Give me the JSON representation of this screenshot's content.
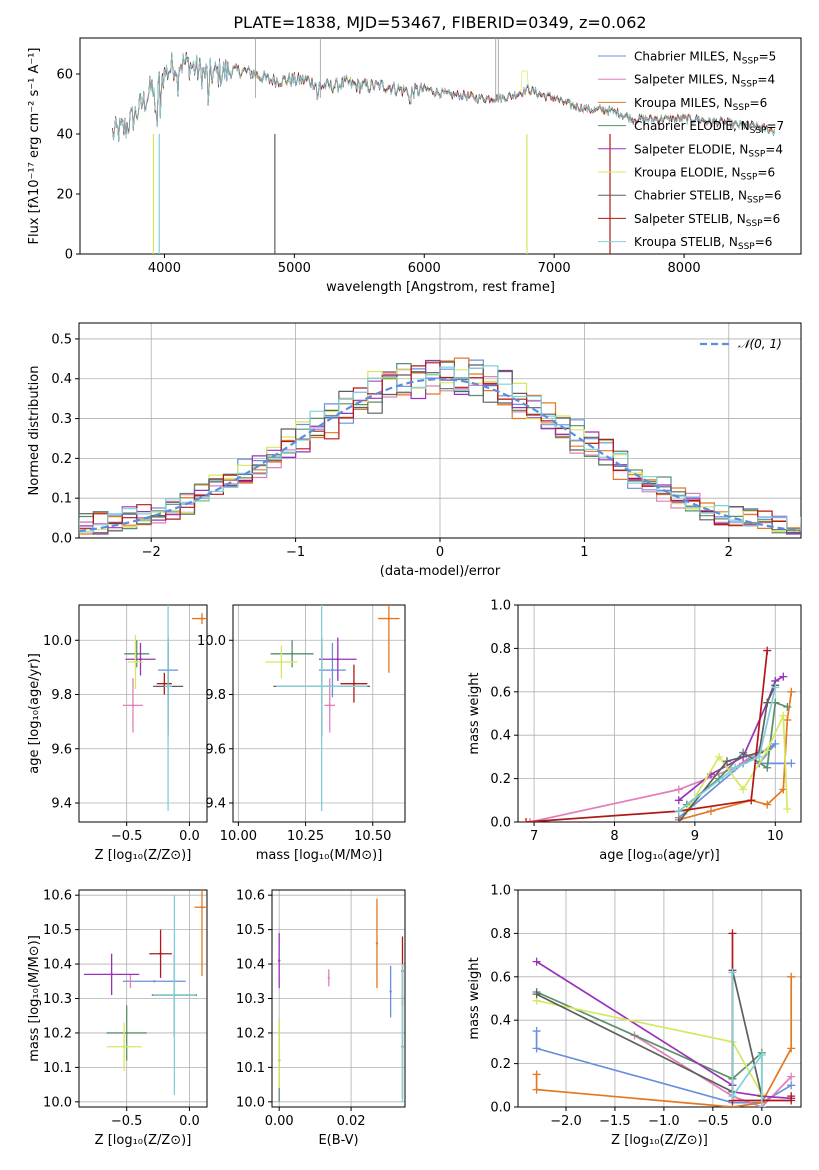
{
  "figure": {
    "title": "PLATE=1838, MJD=53467, FIBERID=0349, z=0.062"
  },
  "models": [
    {
      "name": "Chabrier MILES",
      "n": "5",
      "color": "#6a8fdc"
    },
    {
      "name": "Salpeter MILES",
      "n": "4",
      "color": "#e07fba"
    },
    {
      "name": "Kroupa MILES",
      "n": "6",
      "color": "#e37822"
    },
    {
      "name": "Chabrier ELODIE",
      "n": "7",
      "color": "#5a8f6a"
    },
    {
      "name": "Salpeter ELODIE",
      "n": "4",
      "color": "#9a32b8"
    },
    {
      "name": "Kroupa ELODIE",
      "n": "6",
      "color": "#d6e860"
    },
    {
      "name": "Chabrier STELIB",
      "n": "6",
      "color": "#5e5e5e"
    },
    {
      "name": "Salpeter STELIB",
      "n": "6",
      "color": "#b31818"
    },
    {
      "name": "Kroupa STELIB",
      "n": "6",
      "color": "#7fd0d8"
    }
  ],
  "chart_data": [
    {
      "id": "spectrum",
      "type": "line",
      "xlabel": "wavelength [Angstrom, rest frame]",
      "ylabel": "Flux [fλ10⁻¹⁷ erg cm⁻² s⁻¹ A⁻¹]",
      "xlim": [
        3350,
        8900
      ],
      "ylim": [
        0,
        72
      ],
      "xticks": [
        4000,
        5000,
        6000,
        7000,
        8000
      ],
      "yticks": [
        0,
        20,
        40,
        60
      ],
      "continuum": [
        [
          3600,
          40
        ],
        [
          3700,
          42
        ],
        [
          3800,
          48
        ],
        [
          3900,
          55
        ],
        [
          3960,
          57
        ],
        [
          4000,
          60
        ],
        [
          4100,
          64
        ],
        [
          4200,
          63
        ],
        [
          4300,
          60
        ],
        [
          4400,
          60
        ],
        [
          4500,
          61
        ],
        [
          4600,
          61
        ],
        [
          4700,
          60
        ],
        [
          4800,
          58
        ],
        [
          4900,
          58
        ],
        [
          5000,
          58
        ],
        [
          5100,
          58
        ],
        [
          5200,
          56
        ],
        [
          5300,
          56
        ],
        [
          5400,
          57
        ],
        [
          5500,
          56
        ],
        [
          5600,
          56
        ],
        [
          5700,
          56
        ],
        [
          5800,
          55
        ],
        [
          5900,
          54
        ],
        [
          6000,
          55
        ],
        [
          6100,
          54
        ],
        [
          6200,
          53
        ],
        [
          6300,
          53
        ],
        [
          6400,
          52
        ],
        [
          6500,
          52
        ],
        [
          6600,
          52
        ],
        [
          6700,
          53
        ],
        [
          6800,
          55
        ],
        [
          6900,
          53
        ],
        [
          7000,
          52
        ],
        [
          7100,
          50
        ],
        [
          7200,
          49
        ],
        [
          7300,
          48
        ],
        [
          7400,
          48
        ],
        [
          7500,
          47
        ],
        [
          7600,
          45
        ],
        [
          7700,
          45
        ],
        [
          7800,
          45
        ],
        [
          7900,
          45
        ],
        [
          8000,
          45
        ],
        [
          8100,
          45
        ],
        [
          8200,
          44
        ],
        [
          8300,
          44
        ],
        [
          8400,
          43
        ],
        [
          8500,
          43
        ],
        [
          8600,
          42
        ],
        [
          8700,
          41
        ]
      ],
      "legend": "top-right"
    },
    {
      "id": "residuals",
      "type": "histogram",
      "xlabel": "(data-model)/error",
      "ylabel": "Normed distribution",
      "xlim": [
        -2.5,
        2.5
      ],
      "ylim": [
        0,
        0.54
      ],
      "xticks": [
        -2,
        -1,
        0,
        1,
        2
      ],
      "yticks": [
        0.0,
        0.1,
        0.2,
        0.3,
        0.4,
        0.5
      ],
      "bin_width": 0.1,
      "reference": {
        "label": "𝒩(0, 1)",
        "mean": 0,
        "sigma": 1,
        "color": "#5b8ee0"
      },
      "legend": "top-right"
    },
    {
      "id": "age_vs_Z",
      "type": "scatter",
      "xlabel": "Z [log₁₀(Z/Z⊙)]",
      "ylabel": "age  [log₁₀(age/yr)]",
      "xlim": [
        -0.88,
        0.14
      ],
      "ylim": [
        9.33,
        10.13
      ],
      "xticks": [
        -0.5,
        0.0
      ],
      "yticks": [
        9.4,
        9.6,
        9.8,
        10.0
      ],
      "points": [
        {
          "x": -0.17,
          "y": 9.89,
          "xe": 0.08,
          "ye": 0.1
        },
        {
          "x": -0.45,
          "y": 9.76,
          "xe": 0.08,
          "ye": 0.1
        },
        {
          "x": 0.1,
          "y": 10.08,
          "xe": 0.08,
          "ye": 0.02
        },
        {
          "x": -0.42,
          "y": 9.95,
          "xe": 0.1,
          "ye": 0.05
        },
        {
          "x": -0.39,
          "y": 9.93,
          "xe": 0.12,
          "ye": 0.06
        },
        {
          "x": -0.43,
          "y": 9.92,
          "xe": 0.06,
          "ye": 0.1
        },
        {
          "x": -0.17,
          "y": 9.83,
          "xe": 0.12,
          "ye": 0.18
        },
        {
          "x": -0.2,
          "y": 9.84,
          "xe": 0.06,
          "ye": 0.04
        },
        {
          "x": -0.17,
          "y": 9.83,
          "xe": 0.03,
          "ye": 0.46
        }
      ]
    },
    {
      "id": "age_vs_mass",
      "type": "scatter",
      "xlabel": "mass [log₁₀(M/M⊙)]",
      "ylabel": "",
      "xlim": [
        9.98,
        10.62
      ],
      "ylim": [
        9.33,
        10.13
      ],
      "xticks": [
        10.0,
        10.25,
        10.5
      ],
      "yticks": [
        9.4,
        9.6,
        9.8,
        10.0
      ],
      "points": [
        {
          "x": 10.35,
          "y": 9.89,
          "xe": 0.05,
          "ye": 0.1
        },
        {
          "x": 10.34,
          "y": 9.76,
          "xe": 0.02,
          "ye": 0.1
        },
        {
          "x": 10.56,
          "y": 10.08,
          "xe": 0.04,
          "ye": 0.2
        },
        {
          "x": 10.2,
          "y": 9.95,
          "xe": 0.08,
          "ye": 0.05
        },
        {
          "x": 10.37,
          "y": 9.93,
          "xe": 0.07,
          "ye": 0.08
        },
        {
          "x": 10.16,
          "y": 9.92,
          "xe": 0.06,
          "ye": 0.06
        },
        {
          "x": 10.31,
          "y": 9.83,
          "xe": 0.18,
          "ye": 0.18
        },
        {
          "x": 10.43,
          "y": 9.84,
          "xe": 0.05,
          "ye": 0.07
        },
        {
          "x": 10.31,
          "y": 9.83,
          "xe": 0.17,
          "ye": 0.46
        }
      ]
    },
    {
      "id": "weight_vs_age",
      "type": "line",
      "xlabel": "age  [log₁₀(age/yr)]",
      "ylabel": "mass weight",
      "xlim": [
        6.8,
        10.32
      ],
      "ylim": [
        0,
        1.0
      ],
      "xticks": [
        7,
        8,
        9,
        10
      ],
      "yticks": [
        0.0,
        0.2,
        0.4,
        0.6,
        0.8,
        1.0
      ],
      "series": [
        {
          "x": [
            8.8,
            9.6,
            10.0,
            9.8,
            9.8,
            10.2
          ],
          "y": [
            0.02,
            0.27,
            0.36,
            0.27,
            0.27,
            0.27
          ]
        },
        {
          "x": [
            6.95,
            8.8,
            9.5,
            9.8
          ],
          "y": [
            0.0,
            0.15,
            0.25,
            0.33
          ]
        },
        {
          "x": [
            8.8,
            9.2,
            9.7,
            9.9,
            10.1,
            10.15,
            10.2
          ],
          "y": [
            0.01,
            0.05,
            0.1,
            0.08,
            0.15,
            0.47,
            0.6
          ]
        },
        {
          "x": [
            8.9,
            9.3,
            9.6,
            9.9,
            10.0,
            10.15
          ],
          "y": [
            0.08,
            0.2,
            0.32,
            0.25,
            0.55,
            0.53
          ]
        },
        {
          "x": [
            8.8,
            9.2,
            9.6,
            9.9,
            10.0,
            10.1
          ],
          "y": [
            0.1,
            0.22,
            0.3,
            0.55,
            0.65,
            0.67
          ]
        },
        {
          "x": [
            8.9,
            9.3,
            9.6,
            9.9,
            10.1,
            10.15
          ],
          "y": [
            0.05,
            0.3,
            0.15,
            0.33,
            0.49,
            0.06
          ]
        },
        {
          "x": [
            8.8,
            9.4,
            9.8,
            9.9,
            10.0
          ],
          "y": [
            0.0,
            0.28,
            0.32,
            0.55,
            0.63
          ]
        },
        {
          "x": [
            6.9,
            8.8,
            9.7,
            9.9
          ],
          "y": [
            0.0,
            0.05,
            0.1,
            0.79
          ]
        },
        {
          "x": [
            8.8,
            9.5,
            9.8,
            10.0
          ],
          "y": [
            0.05,
            0.25,
            0.3,
            0.62
          ]
        }
      ]
    },
    {
      "id": "mass_vs_Z",
      "type": "scatter",
      "xlabel": "Z [log₁₀(Z/Z⊙)]",
      "ylabel": "mass [log₁₀(M/M⊙)]",
      "xlim": [
        -0.88,
        0.14
      ],
      "ylim": [
        9.985,
        10.615
      ],
      "xticks": [
        -0.5,
        0.0
      ],
      "yticks": [
        10.0,
        10.1,
        10.2,
        10.3,
        10.4,
        10.5,
        10.6
      ],
      "points": [
        {
          "x": -0.28,
          "y": 10.35,
          "xe": 0.25,
          "ye": 0.0
        },
        {
          "x": -0.47,
          "y": 10.35,
          "xe": 0.0,
          "ye": 0.02
        },
        {
          "x": 0.1,
          "y": 10.565,
          "xe": 0.06,
          "ye": 0.2
        },
        {
          "x": -0.5,
          "y": 10.2,
          "xe": 0.16,
          "ye": 0.08
        },
        {
          "x": -0.62,
          "y": 10.37,
          "xe": 0.22,
          "ye": 0.06
        },
        {
          "x": -0.52,
          "y": 10.16,
          "xe": 0.14,
          "ye": 0.07
        },
        {
          "x": -0.12,
          "y": 10.31,
          "xe": 0.18,
          "ye": 0.12
        },
        {
          "x": -0.23,
          "y": 10.43,
          "xe": 0.09,
          "ye": 0.07
        },
        {
          "x": -0.12,
          "y": 10.31,
          "xe": 0.17,
          "ye": 0.29
        }
      ]
    },
    {
      "id": "mass_vs_ebv",
      "type": "scatter",
      "xlabel": "E(B-V)",
      "ylabel": "",
      "xlim": [
        -0.002,
        0.035
      ],
      "ylim": [
        9.985,
        10.615
      ],
      "xticks": [
        0.0,
        0.02
      ],
      "yticks": [
        10.0,
        10.1,
        10.2,
        10.3,
        10.4,
        10.5,
        10.6
      ],
      "points": [
        {
          "x": 0.031,
          "y": 10.32,
          "xe": 0.0,
          "ye": 0.075
        },
        {
          "x": 0.0138,
          "y": 10.36,
          "xe": 0.0,
          "ye": 0.025
        },
        {
          "x": 0.0272,
          "y": 10.46,
          "xe": 0.0,
          "ye": 0.13
        },
        {
          "x": 0.0,
          "y": 10.12,
          "xe": 0.0,
          "ye": 0.12
        },
        {
          "x": 0.0,
          "y": 10.41,
          "xe": 0.0,
          "ye": 0.08
        },
        {
          "x": 0.0,
          "y": 10.14,
          "xe": 0.0,
          "ye": 0.1
        },
        {
          "x": 0.0343,
          "y": 10.16,
          "xe": 0.0,
          "ye": 0.15
        },
        {
          "x": 0.0343,
          "y": 10.38,
          "xe": 0.0,
          "ye": 0.1
        },
        {
          "x": 0.0343,
          "y": 10.2,
          "xe": 0.0,
          "ye": 0.2
        }
      ]
    },
    {
      "id": "weight_vs_Z",
      "type": "line",
      "xlabel": "Z [log₁₀(Z/Z⊙)]",
      "ylabel": "mass weight",
      "xlim": [
        -2.49,
        0.4
      ],
      "ylim": [
        0,
        1.0
      ],
      "xticks": [
        -2.0,
        -1.5,
        -1.0,
        -0.5,
        0.0
      ],
      "yticks": [
        0.0,
        0.2,
        0.4,
        0.6,
        0.8,
        1.0
      ],
      "series": [
        {
          "x": [
            -2.3,
            -2.3,
            -0.3,
            0.0,
            0.3
          ],
          "y": [
            0.35,
            0.27,
            0.02,
            0.02,
            0.1
          ]
        },
        {
          "x": [
            -1.3,
            -0.3,
            0.0,
            0.3
          ],
          "y": [
            0.33,
            0.05,
            0.0,
            0.14
          ]
        },
        {
          "x": [
            -2.3,
            -2.3,
            -0.3,
            0.0,
            0.3,
            0.3
          ],
          "y": [
            0.15,
            0.08,
            0.0,
            0.02,
            0.27,
            0.6
          ]
        },
        {
          "x": [
            -2.3,
            -0.3,
            0.0,
            0.0
          ],
          "y": [
            0.53,
            0.13,
            0.25,
            0.03
          ]
        },
        {
          "x": [
            -2.3,
            -0.3,
            -0.3,
            0.0,
            0.3
          ],
          "y": [
            0.67,
            0.1,
            0.07,
            0.05,
            0.04
          ]
        },
        {
          "x": [
            -2.3,
            -0.3,
            0.0
          ],
          "y": [
            0.49,
            0.3,
            0.06
          ]
        },
        {
          "x": [
            -2.3,
            -0.3,
            -0.3,
            0.0
          ],
          "y": [
            0.52,
            0.07,
            0.63,
            0.05
          ]
        },
        {
          "x": [
            -0.3,
            -0.3,
            0.3,
            0.3
          ],
          "y": [
            0.8,
            0.03,
            0.03,
            0.05
          ]
        },
        {
          "x": [
            -0.3,
            -0.3,
            0.0,
            0.0
          ],
          "y": [
            0.62,
            0.05,
            0.24,
            0.0
          ]
        }
      ]
    }
  ]
}
